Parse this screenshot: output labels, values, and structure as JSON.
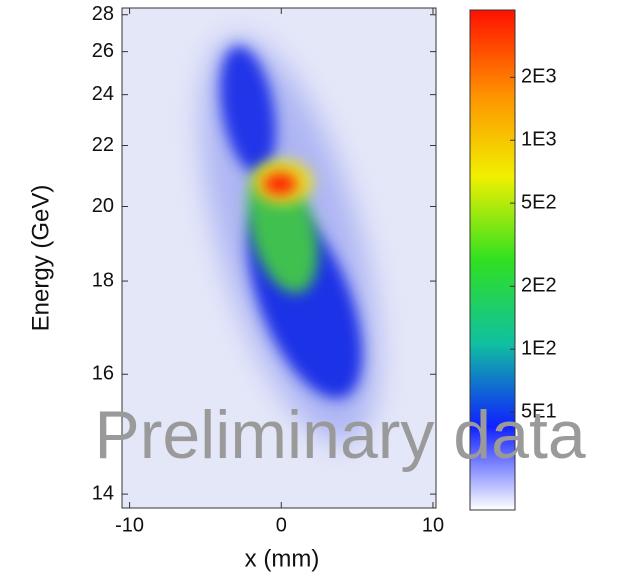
{
  "chart_data": {
    "type": "heatmap",
    "xlabel": "x (mm)",
    "ylabel": "Energy (GeV)",
    "xlim": [
      -10.5,
      10.2
    ],
    "xticks": [
      -10,
      0,
      10
    ],
    "ylim": [
      13.8,
      28.4
    ],
    "yscale": "reciprocal",
    "yticks": [
      14,
      16,
      18,
      20,
      22,
      24,
      26,
      28
    ],
    "colorbar": {
      "scale": "log",
      "lim": [
        17,
        4200
      ],
      "ticks": [
        {
          "value": 50,
          "label": "5E1"
        },
        {
          "value": 100,
          "label": "1E2"
        },
        {
          "value": 200,
          "label": "2E2"
        },
        {
          "value": 500,
          "label": "5E2"
        },
        {
          "value": 1000,
          "label": "1E3"
        },
        {
          "value": 2000,
          "label": "2E3"
        }
      ],
      "colormap": [
        "#ffffff",
        "#1020ff",
        "#10c0a0",
        "#30e020",
        "#f0f000",
        "#ff9000",
        "#ff1000"
      ]
    },
    "watermark": "Preliminary data"
  }
}
